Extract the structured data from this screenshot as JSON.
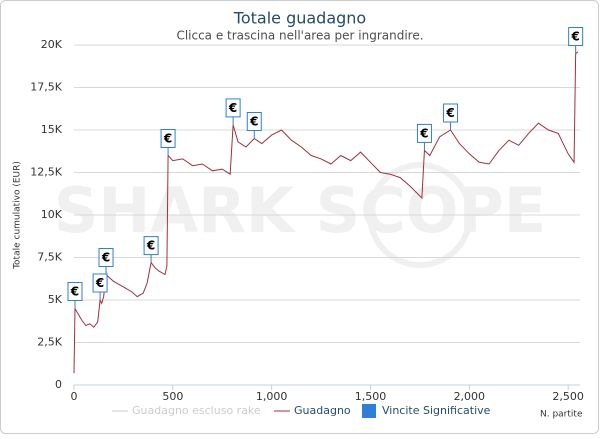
{
  "chart_data": {
    "type": "line",
    "title": "Totale guadagno",
    "subtitle": "Clicca e trascina nell'area per ingrandire.",
    "watermark": "SHARK SCOPE",
    "y_label": "Totale cumulativo (EUR)",
    "x_label": "N. partite",
    "xlim": [
      0,
      2560
    ],
    "ylim": [
      0,
      20000
    ],
    "xticks": [
      0,
      500,
      {
        "value": 1000,
        "label": "1,000"
      },
      {
        "value": 1500,
        "label": "1,500"
      },
      {
        "value": 2000,
        "label": "2,000"
      },
      {
        "value": 2500,
        "label": "2,500"
      }
    ],
    "yticks": [
      0,
      {
        "value": 2500,
        "label": "2,5K"
      },
      {
        "value": 5000,
        "label": "5K"
      },
      {
        "value": 7500,
        "label": "7,5K"
      },
      {
        "value": 10000,
        "label": "10K"
      },
      {
        "value": 12500,
        "label": "12,5K"
      },
      {
        "value": 15000,
        "label": "15K"
      },
      {
        "value": 17500,
        "label": "17,5K"
      },
      {
        "value": 20000,
        "label": "20K"
      }
    ],
    "grid": true,
    "series": [
      {
        "name": "Guadagno escluso rake",
        "color": "#cccccc"
      },
      {
        "name": "Guadagno",
        "color": "#a0303a",
        "x": [
          0,
          5,
          20,
          40,
          60,
          80,
          100,
          120,
          132,
          140,
          150,
          162,
          180,
          200,
          230,
          260,
          290,
          320,
          350,
          370,
          390,
          410,
          430,
          460,
          470,
          476,
          500,
          550,
          600,
          650,
          700,
          750,
          790,
          805,
          830,
          870,
          912,
          950,
          1000,
          1050,
          1100,
          1150,
          1200,
          1250,
          1300,
          1350,
          1400,
          1450,
          1500,
          1550,
          1600,
          1650,
          1700,
          1760,
          1773,
          1800,
          1850,
          1905,
          1950,
          2000,
          2050,
          2100,
          2150,
          2200,
          2250,
          2300,
          2350,
          2400,
          2450,
          2500,
          2530,
          2538,
          2550
        ],
        "values": [
          700,
          4500,
          4200,
          3800,
          3500,
          3600,
          3400,
          3700,
          5000,
          4800,
          5200,
          6500,
          6300,
          6100,
          5900,
          5700,
          5500,
          5200,
          5400,
          6000,
          7200,
          6900,
          6700,
          6500,
          7000,
          13500,
          13200,
          13300,
          12900,
          13000,
          12600,
          12700,
          12400,
          15300,
          14300,
          14000,
          14500,
          14200,
          14700,
          15000,
          14400,
          14000,
          13500,
          13300,
          13000,
          13500,
          13200,
          13700,
          13100,
          12500,
          12400,
          12200,
          11700,
          11000,
          13800,
          13500,
          14600,
          15000,
          14200,
          13600,
          13100,
          13000,
          13800,
          14400,
          14100,
          14800,
          15400,
          15000,
          14800,
          13600,
          13100,
          19500,
          19600
        ]
      },
      {
        "name": "Vincite Significative",
        "color": "#2f7ed8",
        "marker_label": "€",
        "x": [
          5,
          132,
          162,
          390,
          476,
          805,
          912,
          1773,
          1905,
          2538
        ],
        "values": [
          4500,
          5000,
          6500,
          7200,
          13500,
          15300,
          14500,
          13800,
          15000,
          19500
        ]
      }
    ]
  }
}
